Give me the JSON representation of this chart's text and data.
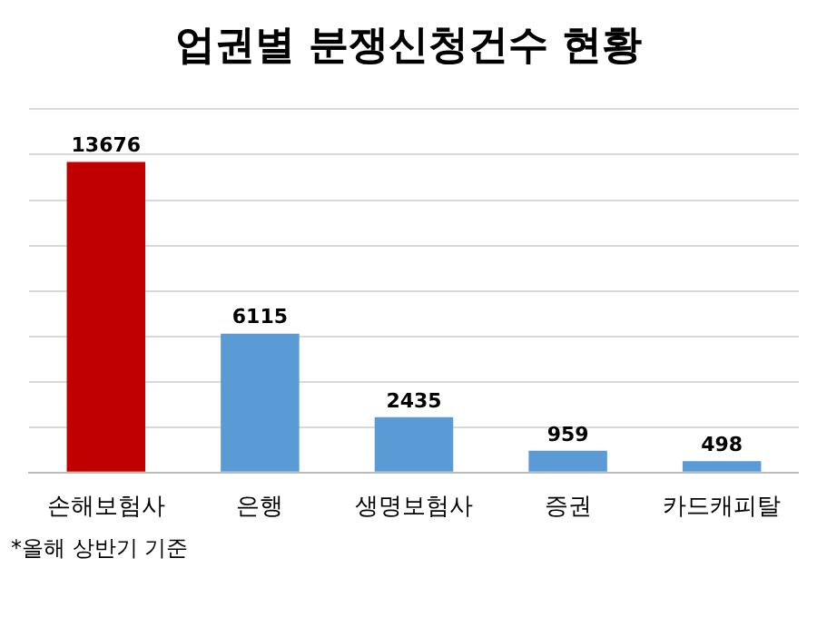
{
  "chart_data": {
    "type": "bar",
    "title": "업권별 분쟁신청건수 현황",
    "categories": [
      "손해보험사",
      "은행",
      "생명보험사",
      "증권",
      "카드캐피탈"
    ],
    "values": [
      13676,
      6115,
      2435,
      959,
      498
    ],
    "colors": [
      "#c00000",
      "#5b9bd5",
      "#5b9bd5",
      "#5b9bd5",
      "#5b9bd5"
    ],
    "ylim": [
      0,
      16000
    ],
    "yticks": [
      {
        "value": 0,
        "label": null
      },
      {
        "value": 2000,
        "label": null
      },
      {
        "value": 4000,
        "label": null
      },
      {
        "value": 6000,
        "label": null
      },
      {
        "value": 8000,
        "label": null
      },
      {
        "value": 10000,
        "label": null
      },
      {
        "value": 12000,
        "label": null
      },
      {
        "value": 14000,
        "label": null
      },
      {
        "value": 16000,
        "label": null
      }
    ],
    "grid": "y",
    "data_labels": true,
    "legend": false,
    "annotations": [
      "*올해 상반기 기준"
    ]
  }
}
